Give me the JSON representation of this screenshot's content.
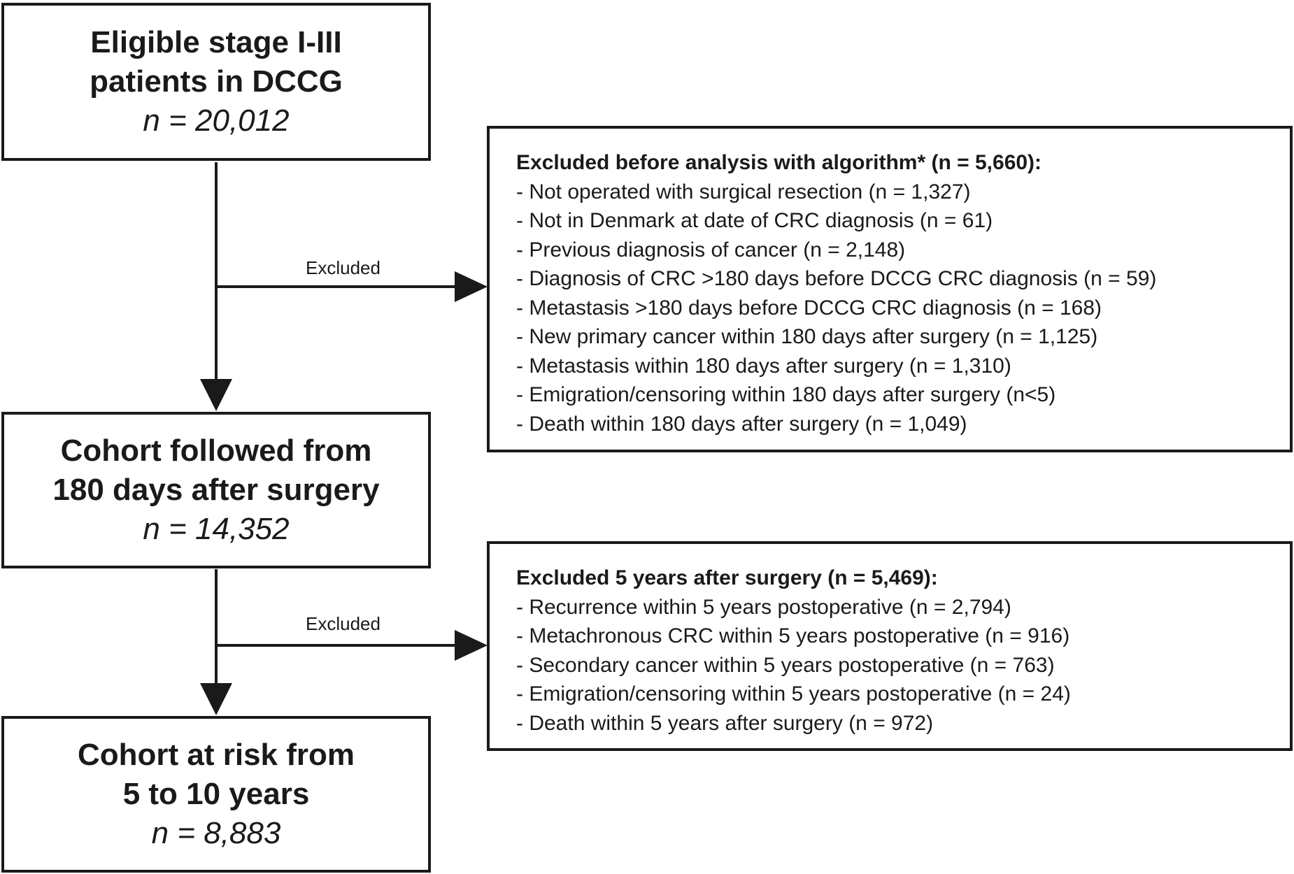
{
  "boxes": [
    {
      "title_lines": [
        "Eligible stage I-III",
        "patients in DCCG"
      ],
      "n": "n = 20,012"
    },
    {
      "title_lines": [
        "Cohort followed from",
        "180 days after surgery"
      ],
      "n": "n = 14,352"
    },
    {
      "title_lines": [
        "Cohort at risk from",
        "5 to 10 years"
      ],
      "n": "n = 8,883"
    }
  ],
  "exclusions": [
    {
      "label": "Excluded",
      "title": "Excluded before analysis with algorithm* (n = 5,660):",
      "items": [
        "- Not operated with surgical resection (n = 1,327)",
        "- Not in Denmark at date of CRC diagnosis (n = 61)",
        "- Previous diagnosis of cancer (n = 2,148)",
        "- Diagnosis of CRC >180 days before DCCG CRC diagnosis (n = 59)",
        "- Metastasis >180 days before DCCG CRC diagnosis (n = 168)",
        "- New primary cancer within 180 days after surgery (n = 1,125)",
        "- Metastasis within 180 days after surgery (n = 1,310)",
        "- Emigration/censoring within 180 days after surgery (n<5)",
        "- Death within 180 days after surgery (n = 1,049)"
      ]
    },
    {
      "label": "Excluded",
      "title": "Excluded 5 years after surgery (n = 5,469):",
      "items": [
        "- Recurrence within 5 years postoperative (n = 2,794)",
        "- Metachronous CRC within 5 years postoperative (n = 916)",
        "- Secondary cancer within 5 years postoperative (n = 763)",
        "- Emigration/censoring within 5 years postoperative (n = 24)",
        "- Death within 5 years after surgery (n = 972)"
      ]
    }
  ]
}
